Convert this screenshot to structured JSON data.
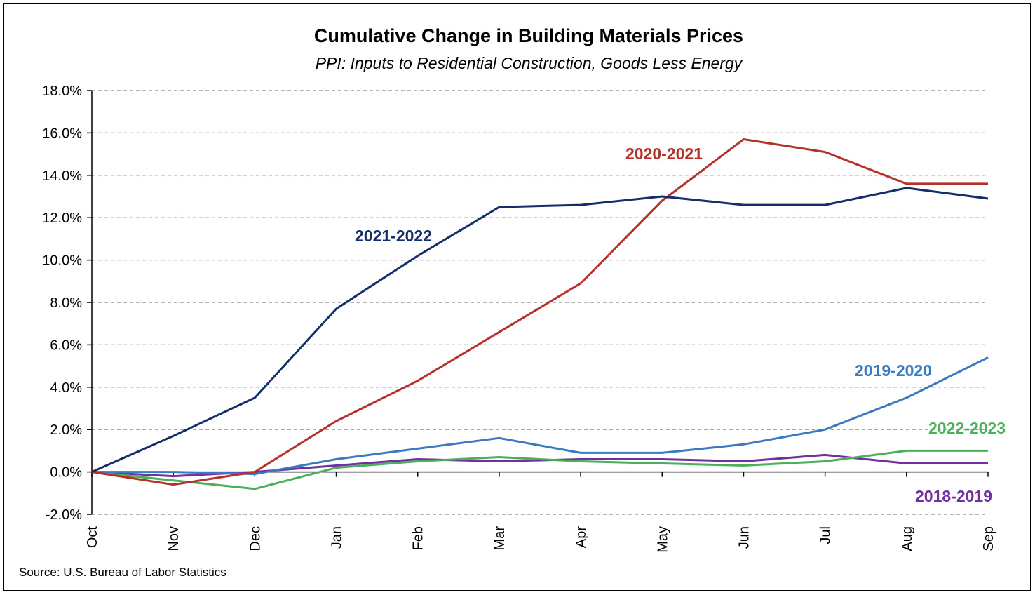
{
  "chart_data": {
    "type": "line",
    "title": "Cumulative Change in Building Materials Prices",
    "subtitle": "PPI: Inputs to Residential Construction, Goods Less Energy",
    "source": "Source: U.S. Bureau of Labor Statistics",
    "categories": [
      "Oct",
      "Nov",
      "Dec",
      "Jan",
      "Feb",
      "Mar",
      "Apr",
      "May",
      "Jun",
      "Jul",
      "Aug",
      "Sep"
    ],
    "ylim": [
      -2.0,
      18.0
    ],
    "ytick_values": [
      -2,
      0,
      2,
      4,
      6,
      8,
      10,
      12,
      14,
      16,
      18
    ],
    "ytick_labels": [
      "-2.0%",
      "0.0%",
      "2.0%",
      "4.0%",
      "6.0%",
      "8.0%",
      "10.0%",
      "12.0%",
      "14.0%",
      "16.0%",
      "18.0%"
    ],
    "grid": true,
    "legend": "none",
    "series": [
      {
        "name": "2018-2019",
        "color": "#7030a0",
        "values": [
          0.0,
          -0.2,
          0.0,
          0.3,
          0.6,
          0.5,
          0.6,
          0.6,
          0.5,
          0.8,
          0.4,
          0.4
        ]
      },
      {
        "name": "2022-2023",
        "color": "#4caf5b",
        "values": [
          0.0,
          -0.4,
          -0.8,
          0.2,
          0.5,
          0.7,
          0.5,
          0.4,
          0.3,
          0.5,
          1.0,
          1.0
        ]
      },
      {
        "name": "2019-2020",
        "color": "#3a7ac0",
        "values": [
          0.0,
          0.0,
          -0.1,
          0.6,
          1.1,
          1.6,
          0.9,
          0.9,
          1.3,
          2.0,
          3.5,
          5.4
        ]
      },
      {
        "name": "2020-2021",
        "color": "#b5302a",
        "values": [
          0.0,
          -0.6,
          0.0,
          2.4,
          4.3,
          6.6,
          8.9,
          12.8,
          15.7,
          15.1,
          13.6,
          13.6
        ]
      },
      {
        "name": "2021-2022",
        "color": "#142d6b",
        "values": [
          0.0,
          1.7,
          3.5,
          7.7,
          10.2,
          12.5,
          12.6,
          13.0,
          12.6,
          12.6,
          13.4,
          12.9
        ]
      }
    ]
  }
}
